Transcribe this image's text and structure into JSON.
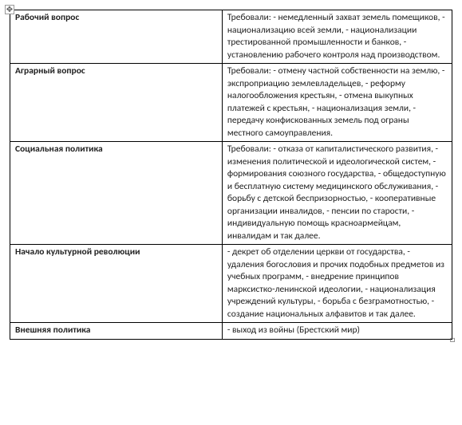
{
  "table": {
    "border_color": "#000000",
    "background_color": "#ffffff",
    "font_family": "Calibri",
    "font_size": 11.5,
    "topic_font_weight": "bold",
    "rows": [
      {
        "topic": "Рабочий вопрос",
        "description": "Требовали: - немедленный захват земель помещиков, - национализацию всей земли, - национализации трестированной промышленности и банков, - установлению рабочего контроля над производством."
      },
      {
        "topic": "Аграрный вопрос",
        "description": "Требовали: - отмену частной собственности на землю, - экспроприацию землевладельцев, - реформу налогообложения крестьян, - отмена выкупных платежей с крестьян, - национализация земли, - передачу конфискованных земель под ограны местного самоуправления."
      },
      {
        "topic": "Социальная политика",
        "description": "Требовали: - отказа от капиталистического развития, - изменения политической и идеологической систем, - формирования союзного государства, - общедоступную и бесплатную систему медицинского обслуживания, - борьбу с детской беспризорностью, - кооперативные организации инвалидов, - пенсии по старости, - индивидуальную помощь красноармейцам, инвалидам и так далее."
      },
      {
        "topic": "Начало культурной революции",
        "description": "- декрет об отделении церкви от государства, - удаления богословия и прочих подобных предметов из учебных программ, - внедрение принципов марксистко-ленинской идеологии, - национализация учреждений культуры, - борьба с безграмотностью, - создание национальных алфавитов и так далее."
      },
      {
        "topic": "Внешняя политика",
        "description": "- выход из войны (Брестский мир)"
      }
    ]
  },
  "anchors": {
    "tl_glyph": "✥",
    "br_glyph": "□"
  }
}
